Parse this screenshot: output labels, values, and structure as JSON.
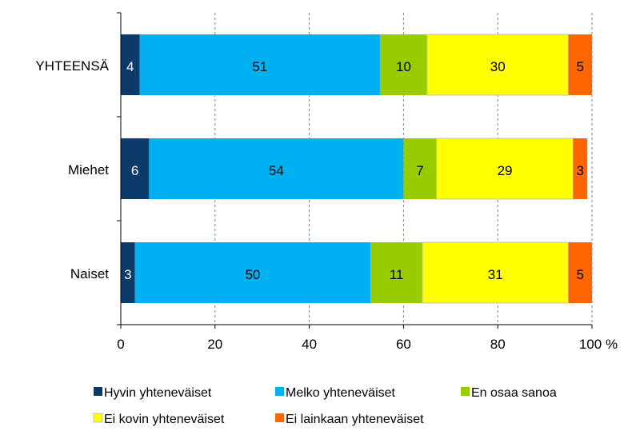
{
  "chart_data": {
    "type": "bar",
    "orientation": "horizontal",
    "stacked": true,
    "categories": [
      "YHTEENSÄ",
      "Miehet",
      "Naiset"
    ],
    "series": [
      {
        "name": "Hyvin yhteneväiset",
        "color": "#0B3A6B",
        "label_color": "#ffffff",
        "values": [
          4,
          6,
          3
        ]
      },
      {
        "name": "Melko yhteneväiset",
        "color": "#00B0F0",
        "label_color": "#000000",
        "values": [
          51,
          54,
          50
        ]
      },
      {
        "name": "En osaa sanoa",
        "color": "#99CC00",
        "label_color": "#000000",
        "values": [
          10,
          7,
          11
        ]
      },
      {
        "name": "Ei kovin yhteneväiset",
        "color": "#FFFF00",
        "label_color": "#000000",
        "values": [
          30,
          29,
          31
        ]
      },
      {
        "name": "Ei lainkaan yhteneväiset",
        "color": "#FF6600",
        "label_color": "#000000",
        "values": [
          5,
          3,
          5
        ]
      }
    ],
    "xlim": [
      0,
      100
    ],
    "x_ticks": [
      0,
      20,
      40,
      60,
      80,
      100
    ],
    "x_tick_labels": [
      "0",
      "20",
      "40",
      "60",
      "80",
      "100"
    ],
    "x_unit": "%",
    "gridlines": "vertical-dashed",
    "legend_position": "bottom"
  }
}
